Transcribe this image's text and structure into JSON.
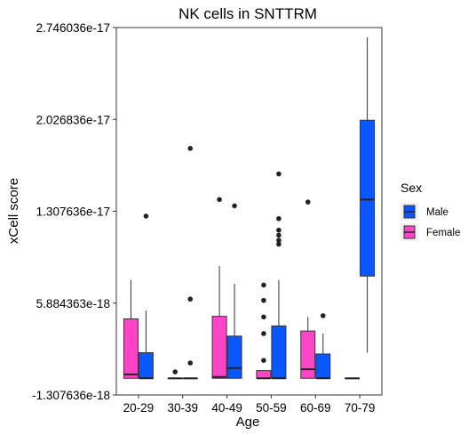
{
  "chart_data": {
    "type": "box",
    "title": "NK cells in SNTTRM",
    "xlabel": "Age",
    "ylabel": "xCell score",
    "categories": [
      "20-29",
      "30-39",
      "40-49",
      "50-59",
      "60-69",
      "70-79"
    ],
    "yticks": [
      "-1.307636e-18",
      "5.884363e-18",
      "1.307636e-17",
      "2.026836e-17",
      "2.746036e-17"
    ],
    "ylim": [
      -1.307636e-18,
      2.746036e-17
    ],
    "grid": false,
    "legend": {
      "title": "Sex",
      "placement": "right",
      "entries": [
        {
          "label": "Male",
          "color": "#0a56ff"
        },
        {
          "label": "Female",
          "color": "#ff44c8"
        }
      ]
    },
    "series": [
      {
        "name": "Female",
        "color": "#ff44c8",
        "boxes": [
          {
            "category": "20-29",
            "lower": 0,
            "q1": 0,
            "median": 3e-19,
            "q3": 4.65e-18,
            "upper": 7.7e-18,
            "outliers": []
          },
          {
            "category": "30-39",
            "lower": 0,
            "q1": 0,
            "median": 0,
            "q3": 0,
            "upper": 0,
            "outliers": [
              5e-19
            ]
          },
          {
            "category": "40-49",
            "lower": 0,
            "q1": 0,
            "median": 1e-19,
            "q3": 4.85e-18,
            "upper": 8.8e-18,
            "outliers": [
              1.4e-17
            ]
          },
          {
            "category": "50-59",
            "lower": 0,
            "q1": 0,
            "median": 0,
            "q3": 6e-19,
            "upper": 6e-19,
            "outliers": [
              1.4e-18,
              3.5e-18,
              4.8e-18,
              6.1e-18,
              7.3e-18
            ]
          },
          {
            "category": "60-69",
            "lower": 0,
            "q1": 0,
            "median": 7e-19,
            "q3": 3.7e-18,
            "upper": 4.8e-18,
            "outliers": [
              1.38e-17
            ]
          },
          {
            "category": "70-79",
            "lower": 0,
            "q1": 0,
            "median": 0,
            "q3": 0,
            "upper": 0,
            "outliers": []
          }
        ]
      },
      {
        "name": "Male",
        "color": "#0a56ff",
        "boxes": [
          {
            "category": "20-29",
            "lower": 0,
            "q1": 0,
            "median": 0,
            "q3": 2e-18,
            "upper": 5.3e-18,
            "outliers": [
              1.27e-17
            ]
          },
          {
            "category": "30-39",
            "lower": 0,
            "q1": 0,
            "median": 0,
            "q3": 0,
            "upper": 0,
            "outliers": [
              1.8e-17,
              6.2e-18,
              1.2e-18
            ]
          },
          {
            "category": "40-49",
            "lower": 0,
            "q1": 0,
            "median": 8e-19,
            "q3": 3.3e-18,
            "upper": 7.4e-18,
            "outliers": [
              1.35e-17
            ]
          },
          {
            "category": "50-59",
            "lower": 0,
            "q1": 0,
            "median": 0,
            "q3": 4.1e-18,
            "upper": 7.7e-18,
            "outliers": [
              1.6e-17,
              1.25e-17,
              1.16e-17,
              1.12e-17,
              1.08e-17,
              1.05e-17
            ]
          },
          {
            "category": "60-69",
            "lower": 0,
            "q1": 0,
            "median": 0,
            "q3": 1.9e-18,
            "upper": 3.5e-18,
            "outliers": [
              4.9e-18
            ]
          },
          {
            "category": "70-79",
            "lower": 2e-18,
            "q1": 8e-18,
            "median": 1.4e-17,
            "q3": 2.02e-17,
            "upper": 2.67e-17,
            "outliers": []
          }
        ]
      }
    ]
  }
}
